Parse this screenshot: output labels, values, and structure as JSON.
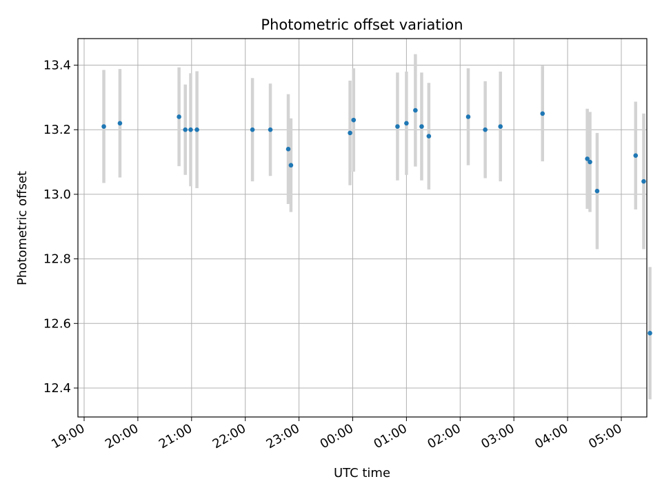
{
  "chart_data": {
    "type": "scatter",
    "title": "Photometric offset variation",
    "xlabel": "UTC time",
    "ylabel": "Photometric offset",
    "x_tick_labels": [
      "19:00",
      "20:00",
      "21:00",
      "22:00",
      "23:00",
      "00:00",
      "01:00",
      "02:00",
      "03:00",
      "04:00",
      "05:00"
    ],
    "y_tick_labels": [
      "12.4",
      "12.6",
      "12.8",
      "13.0",
      "13.2",
      "13.4"
    ],
    "y_ticks": [
      12.4,
      12.6,
      12.8,
      13.0,
      13.2,
      13.4
    ],
    "xlim": [
      "18:55",
      "05:28 (next day)"
    ],
    "ylim": [
      12.31,
      13.485
    ],
    "grid": true,
    "marker_color": "#1f77b4",
    "errorbar_color": "#d3d3d3",
    "points": [
      {
        "time": "19:22",
        "y": 13.21,
        "yerr": 0.175
      },
      {
        "time": "19:40",
        "y": 13.22,
        "yerr": 0.168
      },
      {
        "time": "20:46",
        "y": 13.24,
        "yerr": 0.153
      },
      {
        "time": "20:53",
        "y": 13.2,
        "yerr": 0.14
      },
      {
        "time": "20:59",
        "y": 13.2,
        "yerr": 0.175
      },
      {
        "time": "21:06",
        "y": 13.2,
        "yerr": 0.181
      },
      {
        "time": "22:08",
        "y": 13.2,
        "yerr": 0.16
      },
      {
        "time": "22:28",
        "y": 13.2,
        "yerr": 0.143
      },
      {
        "time": "22:48",
        "y": 13.14,
        "yerr": 0.17
      },
      {
        "time": "22:51",
        "y": 13.09,
        "yerr": 0.145
      },
      {
        "time": "23:57",
        "y": 13.19,
        "yerr": 0.162
      },
      {
        "time": "00:01",
        "y": 13.23,
        "yerr": 0.16
      },
      {
        "time": "00:50",
        "y": 13.21,
        "yerr": 0.167
      },
      {
        "time": "01:00",
        "y": 13.22,
        "yerr": 0.16
      },
      {
        "time": "01:10",
        "y": 13.26,
        "yerr": 0.174
      },
      {
        "time": "01:17",
        "y": 13.21,
        "yerr": 0.167
      },
      {
        "time": "01:25",
        "y": 13.18,
        "yerr": 0.165
      },
      {
        "time": "02:09",
        "y": 13.24,
        "yerr": 0.15
      },
      {
        "time": "02:28",
        "y": 13.2,
        "yerr": 0.15
      },
      {
        "time": "02:45",
        "y": 13.21,
        "yerr": 0.17
      },
      {
        "time": "03:32",
        "y": 13.25,
        "yerr": 0.148
      },
      {
        "time": "04:22",
        "y": 13.11,
        "yerr": 0.155
      },
      {
        "time": "04:25",
        "y": 13.1,
        "yerr": 0.155
      },
      {
        "time": "04:33",
        "y": 13.01,
        "yerr": 0.18
      },
      {
        "time": "05:16",
        "y": 13.12,
        "yerr": 0.167
      },
      {
        "time": "05:25",
        "y": 13.04,
        "yerr": 0.21
      },
      {
        "time": "05:32",
        "y": 12.57,
        "yerr": 0.205
      }
    ]
  }
}
